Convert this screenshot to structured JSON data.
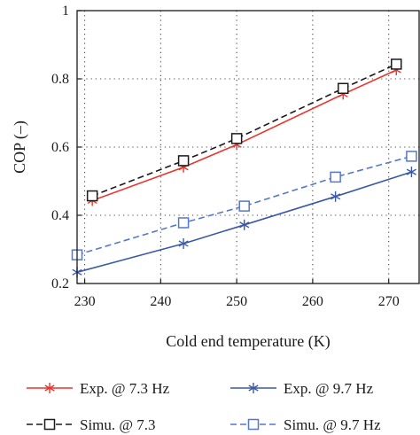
{
  "chart_data": {
    "type": "line",
    "title": "",
    "xlabel": "Cold end temperature (K)",
    "ylabel": "COP (–)",
    "xlim": [
      229,
      274
    ],
    "ylim": [
      0.2,
      1.0
    ],
    "xticks": [
      "230",
      "240",
      "250",
      "260",
      "270"
    ],
    "xtick_values": [
      230,
      240,
      250,
      260,
      270
    ],
    "yticks": [
      "0.2",
      "0.4",
      "0.6",
      "0.8",
      "1"
    ],
    "ytick_values": [
      0.2,
      0.4,
      0.6,
      0.8,
      1.0
    ],
    "grid": true,
    "legend_position": "bottom, two columns",
    "series": [
      {
        "name": "Exp. @ 7.3 Hz",
        "color": "#e8342c",
        "line": "solid",
        "marker": "star",
        "points": [
          [
            231,
            0.443
          ],
          [
            243,
            0.541
          ],
          [
            250,
            0.607
          ],
          [
            264,
            0.755
          ],
          [
            271,
            0.826
          ]
        ]
      },
      {
        "name": "Simu. @ 7.3",
        "color": "#1a1a1a",
        "line": "dashed",
        "marker": "square",
        "points": [
          [
            231,
            0.457
          ],
          [
            243,
            0.56
          ],
          [
            250,
            0.625
          ],
          [
            264,
            0.772
          ],
          [
            271,
            0.843
          ]
        ]
      },
      {
        "name": "Exp. @ 9.7 Hz",
        "color": "#3b59a6",
        "line": "solid",
        "marker": "star",
        "points": [
          [
            229,
            0.233
          ],
          [
            243,
            0.317
          ],
          [
            251,
            0.372
          ],
          [
            263,
            0.455
          ],
          [
            273,
            0.527
          ]
        ]
      },
      {
        "name": "Simu. @ 9.7 Hz",
        "color": "#5577cc",
        "line": "dashed",
        "marker": "square",
        "points": [
          [
            229,
            0.284
          ],
          [
            243,
            0.378
          ],
          [
            251,
            0.427
          ],
          [
            263,
            0.512
          ],
          [
            273,
            0.573
          ]
        ]
      }
    ]
  }
}
